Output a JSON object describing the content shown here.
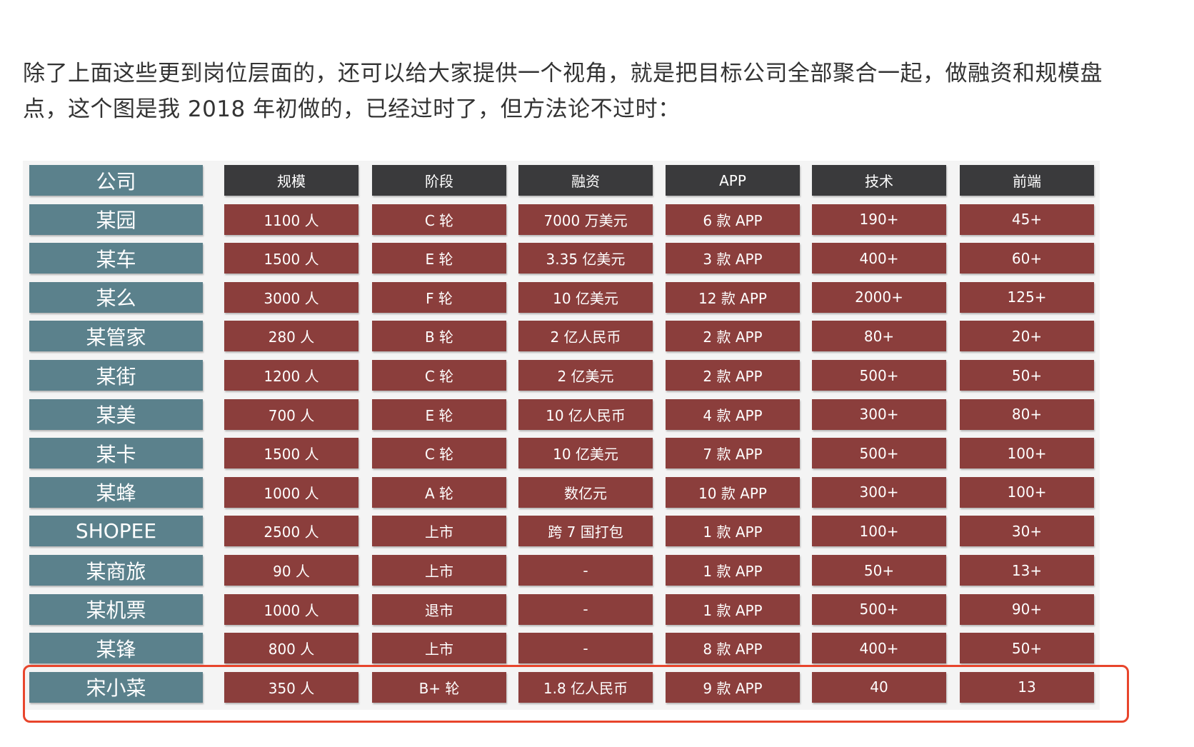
{
  "paragraph": "除了上面这些更到岗位层面的，还可以给大家提供一个视角，就是把目标公司全部聚合一起，做融资和规模盘点，这个图是我 2018 年初做的，已经过时了，但方法论不过时：",
  "table": {
    "header": [
      "公司",
      "规模",
      "阶段",
      "融资",
      "APP",
      "技术",
      "前端"
    ],
    "rows": [
      [
        "某园",
        "1100 人",
        "C 轮",
        "7000 万美元",
        "6 款 APP",
        "190+",
        "45+"
      ],
      [
        "某车",
        "1500 人",
        "E 轮",
        "3.35 亿美元",
        "3 款 APP",
        "400+",
        "60+"
      ],
      [
        "某么",
        "3000 人",
        "F 轮",
        "10 亿美元",
        "12 款 APP",
        "2000+",
        "125+"
      ],
      [
        "某管家",
        "280 人",
        "B 轮",
        "2 亿人民币",
        "2 款 APP",
        "80+",
        "20+"
      ],
      [
        "某街",
        "1200 人",
        "C 轮",
        "2 亿美元",
        "2 款 APP",
        "500+",
        "50+"
      ],
      [
        "某美",
        "700 人",
        "E 轮",
        "10 亿人民币",
        "4 款 APP",
        "300+",
        "80+"
      ],
      [
        "某卡",
        "1500 人",
        "C 轮",
        "10 亿美元",
        "7 款 APP",
        "500+",
        "100+"
      ],
      [
        "某蜂",
        "1000 人",
        "A 轮",
        "数亿元",
        "10 款 APP",
        "300+",
        "100+"
      ],
      [
        "SHOPEE",
        "2500 人",
        "上市",
        "跨 7 国打包",
        "1 款 APP",
        "100+",
        "30+"
      ],
      [
        "某商旅",
        "90 人",
        "上市",
        "-",
        "1 款 APP",
        "50+",
        "13+"
      ],
      [
        "某机票",
        "1000 人",
        "退市",
        "-",
        "1 款 APP",
        "500+",
        "90+"
      ],
      [
        "某锋",
        "800 人",
        "上市",
        "-",
        "8 款 APP",
        "400+",
        "50+"
      ],
      [
        "宋小菜",
        "350 人",
        "B+ 轮",
        "1.8 亿人民币",
        "9 款 APP",
        "40",
        "13"
      ]
    ]
  }
}
